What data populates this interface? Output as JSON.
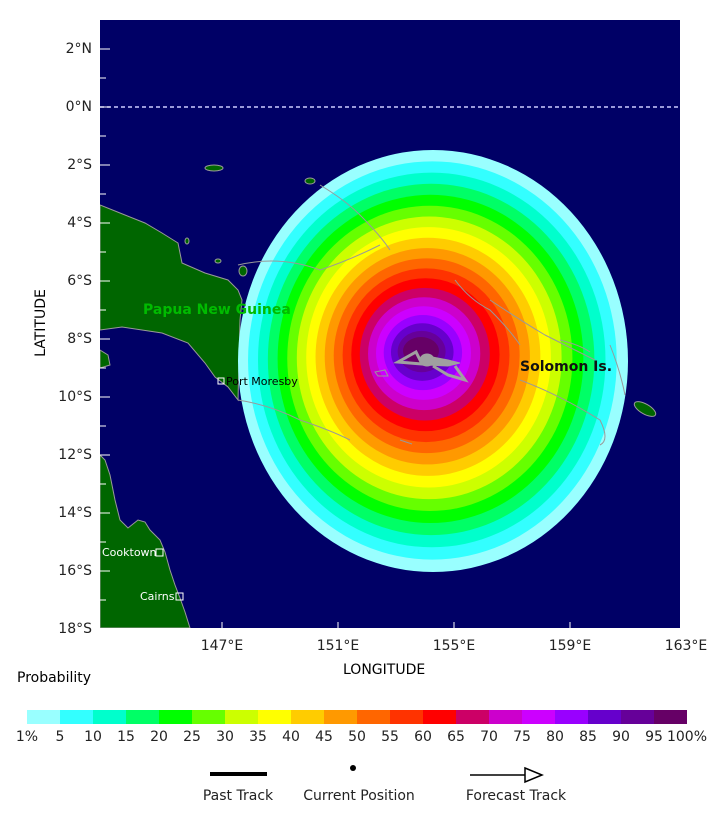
{
  "map": {
    "xlabel": "LONGITUDE",
    "ylabel": "LATITUDE",
    "lat_ticks": [
      "2°N",
      "0°N",
      "2°S",
      "4°S",
      "6°S",
      "8°S",
      "10°S",
      "12°S",
      "14°S",
      "16°S",
      "18°S"
    ],
    "lon_ticks": [
      "147°E",
      "151°E",
      "155°E",
      "159°E",
      "163°E"
    ],
    "region_labels": {
      "png": "Papua New Guinea",
      "solomon": "Solomon Is."
    },
    "cities": [
      "Port Moresby",
      "Cooktown",
      "Cairns"
    ],
    "colors": {
      "ocean": "#000066",
      "land": "#006600",
      "coast": "#999999",
      "track": "#a0a0a0"
    }
  },
  "legend": {
    "title": "Probability",
    "labels": [
      "1%",
      "5",
      "10",
      "15",
      "20",
      "25",
      "30",
      "35",
      "40",
      "45",
      "50",
      "55",
      "60",
      "65",
      "70",
      "75",
      "80",
      "85",
      "90",
      "95",
      "100%"
    ],
    "colors": [
      "#99ffff",
      "#33ffff",
      "#00ffcc",
      "#00ff66",
      "#00ff00",
      "#66ff00",
      "#ccff00",
      "#ffff00",
      "#ffcc00",
      "#ff9900",
      "#ff6600",
      "#ff3300",
      "#ff0000",
      "#cc0066",
      "#cc00cc",
      "#cc00ff",
      "#9900ff",
      "#6600cc",
      "#660099",
      "#660066"
    ]
  },
  "key": {
    "past": "Past Track",
    "current": "Current Position",
    "forecast": "Forecast Track"
  }
}
